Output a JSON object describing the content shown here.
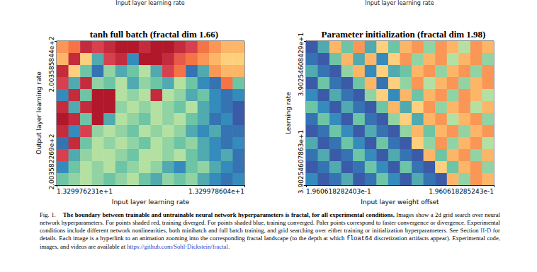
{
  "header_cut_text": [
    "Input layer learning rate",
    "Input layer learning rate"
  ],
  "chart_data": [
    {
      "type": "heatmap",
      "title": "tanh full batch (fractal dim 1.66)",
      "x_label": "Input layer learning rate",
      "y_label": "Output layer learning rate",
      "xlim": [
        13.29976231,
        13.29978604
      ],
      "xticks": [
        {
          "value": 13.29976231,
          "label": "1.329976231e+1"
        },
        {
          "value": 13.29978604,
          "label": "1.329978604e+1"
        }
      ],
      "ylim": [
        200.3582269,
        200.3585844
      ],
      "yticks": [
        {
          "value": 200.3582269,
          "label": "2.003582269e+2"
        },
        {
          "value": 200.3585844,
          "label": "2.003585844e+2"
        }
      ],
      "grid": false,
      "cells": [
        [
          -0.5,
          -0.6,
          -0.9,
          -0.8,
          -0.9,
          -1,
          -1,
          -0.9,
          -1,
          -1,
          -0.9,
          -0.8,
          -0.6,
          -0.5,
          -0.4,
          -0.4
        ],
        [
          -0.4,
          -0.9,
          -0.3,
          0.6,
          -0.8,
          -0.9,
          0.7,
          -1,
          -1,
          -0.9,
          -0.7,
          -0.6,
          -0.5,
          -0.4,
          -0.3,
          -0.3
        ],
        [
          -0.9,
          -0.3,
          0.5,
          0.8,
          0.4,
          0.6,
          0.5,
          0.3,
          0.6,
          -0.8,
          -0.6,
          0.8,
          0.6,
          -0.5,
          -0.4,
          -0.4
        ],
        [
          -0.8,
          0.6,
          -0.9,
          0.4,
          0.5,
          0.3,
          0.6,
          0.4,
          0.5,
          0.6,
          0.3,
          0.5,
          0.7,
          0.8,
          -0.6,
          0.5
        ],
        [
          0.7,
          -0.9,
          0.5,
          -1,
          -1,
          0.3,
          0.4,
          0.3,
          -0.9,
          0.3,
          0.4,
          0.6,
          0.5,
          0.7,
          0.8,
          0.7
        ],
        [
          -0.9,
          0.6,
          -0.9,
          -1,
          -1,
          0.4,
          0.3,
          0.4,
          0.3,
          0.4,
          0.5,
          0.3,
          0.6,
          0.7,
          0.8,
          0.9
        ],
        [
          -1,
          -0.9,
          0.5,
          -1,
          0.6,
          0.3,
          0.4,
          0.5,
          0.3,
          0.4,
          0.3,
          0.5,
          0.6,
          0.8,
          0.7,
          0.9
        ],
        [
          -0.9,
          0.7,
          -0.8,
          0.4,
          0.3,
          0.4,
          0.5,
          0.3,
          0.4,
          0.3,
          0.4,
          0.6,
          0.7,
          0.6,
          0.8,
          0.8
        ],
        [
          0.8,
          -0.9,
          0.5,
          0.3,
          0.4,
          0.3,
          0.4,
          0.5,
          0.3,
          0.4,
          0.5,
          0.4,
          0.6,
          0.7,
          0.8,
          0.7
        ],
        [
          -0.8,
          0.6,
          0.4,
          0.3,
          0.3,
          0.4,
          0.5,
          0.3,
          0.3,
          0.4,
          0.3,
          0.5,
          0.6,
          0.7,
          0.6,
          0.8
        ],
        [
          0.7,
          0.5,
          0.3,
          0.4,
          0.3,
          0.5,
          0.4,
          0.3,
          0.4,
          0.6,
          0.7,
          0.5,
          0.4,
          0.6,
          0.7,
          0.8
        ],
        [
          0.5,
          0.4,
          0.3,
          0.4,
          0.5,
          0.4,
          0.3,
          0.5,
          0.6,
          0.4,
          0.5,
          0.4,
          0.6,
          0.7,
          0.8,
          0.7
        ]
      ]
    },
    {
      "type": "heatmap",
      "title": "Parameter initialization (fractal dim 1.98)",
      "x_label": "Input layer weight offset",
      "y_label": "Learning rate",
      "xlim": [
        0.1960618282403,
        0.1960618285243
      ],
      "xticks": [
        {
          "value": 0.1960618282403,
          "label": "1.960618282403e-1"
        },
        {
          "value": 0.1960618285243,
          "label": "1.960618285243e-1"
        }
      ],
      "ylim": [
        39.0254607863,
        39.0254608429
      ],
      "yticks": [
        {
          "value": 39.0254607863,
          "label": "3.90254607863e+1"
        },
        {
          "value": 39.0254608429,
          "label": "3.90254608429e+1"
        }
      ],
      "grid": false,
      "cells": [
        [
          0.9,
          0.6,
          -0.4,
          0.5,
          -0.5,
          0.6,
          -0.3,
          0.5,
          -0.4,
          -0.5,
          0.4,
          -0.5,
          -0.4,
          0.3,
          -0.5,
          -0.4
        ],
        [
          0.8,
          0.9,
          0.5,
          -0.4,
          0.6,
          -0.4,
          0.7,
          -0.3,
          -0.5,
          0.4,
          -0.4,
          -0.5,
          0.3,
          -0.4,
          -0.5,
          0.4
        ],
        [
          0.6,
          0.8,
          0.9,
          0.4,
          -0.4,
          0.7,
          -0.3,
          0.6,
          0.5,
          -0.4,
          -0.5,
          0.4,
          -0.4,
          -0.5,
          0.4,
          -0.5
        ],
        [
          0.9,
          0.5,
          0.8,
          0.9,
          0.5,
          -0.4,
          0.8,
          -0.3,
          0.4,
          -0.5,
          0.3,
          -0.4,
          -0.5,
          0.4,
          -0.4,
          -0.5
        ],
        [
          0.7,
          0.9,
          0.6,
          0.8,
          0.9,
          0.4,
          -0.3,
          0.7,
          -0.4,
          0.5,
          -0.4,
          -0.5,
          0.4,
          -0.5,
          -0.4,
          0.3
        ],
        [
          0.5,
          0.7,
          0.9,
          0.6,
          0.8,
          0.9,
          0.5,
          -0.4,
          0.6,
          -0.3,
          -0.5,
          0.4,
          -0.4,
          -0.5,
          0.3,
          -0.4
        ],
        [
          0.8,
          0.5,
          0.7,
          0.9,
          0.5,
          0.8,
          0.9,
          0.4,
          -0.3,
          0.6,
          -0.4,
          -0.5,
          0.3,
          -0.4,
          -0.5,
          0.4
        ],
        [
          0.9,
          0.8,
          0.5,
          0.7,
          0.9,
          0.6,
          0.8,
          0.9,
          0.4,
          -0.4,
          0.5,
          -0.4,
          -0.5,
          0.4,
          -0.4,
          -0.5
        ],
        [
          0.6,
          0.9,
          0.8,
          0.5,
          0.7,
          0.9,
          0.5,
          0.8,
          0.9,
          -0.3,
          0.4,
          -0.5,
          0.4,
          -0.4,
          -0.5,
          0.3
        ],
        [
          0.8,
          0.6,
          0.9,
          0.8,
          0.5,
          0.7,
          0.9,
          0.6,
          0.8,
          0.9,
          -0.4,
          0.5,
          -0.4,
          -0.5,
          0.4,
          -0.4
        ],
        [
          0.9,
          0.8,
          0.6,
          0.9,
          0.8,
          0.5,
          0.7,
          0.9,
          0.5,
          0.8,
          0.9,
          -0.3,
          0.5,
          -0.4,
          -0.5,
          0.4
        ],
        [
          0.7,
          0.9,
          0.8,
          0.6,
          0.9,
          0.8,
          0.5,
          0.7,
          0.9,
          0.6,
          0.8,
          0.9,
          -0.4,
          0.4,
          -0.5,
          -0.4
        ]
      ]
    }
  ],
  "caption": [
    {
      "text": "Fig. 1.",
      "style": "label"
    },
    {
      "text": "The boundary between trainable and untrainable neural network hyperparameters is fractal, for all experimental conditions.",
      "style": "bold"
    },
    {
      "text": " Images show a 2d grid search over neural network hyperparameters. For points shaded red, training diverged. For points shaded blue, training converged. Paler points correspond to faster convergence or divergence. Experimental conditions include different network nonlinearities, both minibatch and full batch training, and grid searching over either training or initialization hyperparameters. See Section ",
      "style": "plain"
    },
    {
      "text": "II-D",
      "style": "link"
    },
    {
      "text": " for details. Each image is a hyperlink to an animation zooming into the corresponding fractal landscape (to the depth at which ",
      "style": "plain"
    },
    {
      "text": "float64",
      "style": "mono"
    },
    {
      "text": " discretization artifacts appear). Experimental code, images, and videos are available at ",
      "style": "plain"
    },
    {
      "text": "https://github.com/Sohl-Dickstein/fractal",
      "style": "link"
    },
    {
      "text": ".",
      "style": "plain"
    }
  ]
}
